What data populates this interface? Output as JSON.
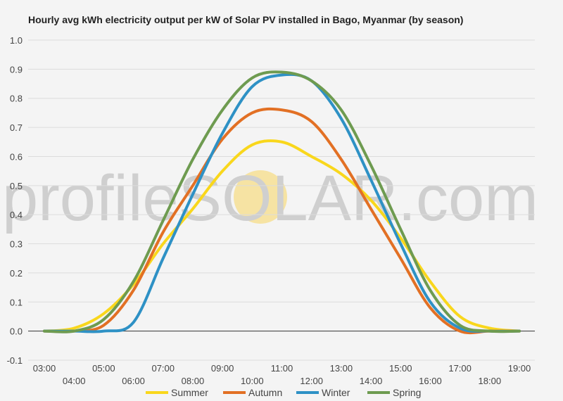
{
  "chart_data": {
    "type": "line",
    "title": "Hourly avg kWh electricity output per kW of Solar PV installed in Bago, Myanmar (by season)",
    "xlabel": "",
    "ylabel": "",
    "ylim": [
      -0.1,
      1.0
    ],
    "yticks": [
      "-0.1",
      "0.0",
      "0.1",
      "0.2",
      "0.3",
      "0.4",
      "0.5",
      "0.6",
      "0.7",
      "0.8",
      "0.9",
      "1.0"
    ],
    "x": [
      "03:00",
      "04:00",
      "05:00",
      "06:00",
      "07:00",
      "08:00",
      "09:00",
      "10:00",
      "11:00",
      "12:00",
      "13:00",
      "14:00",
      "15:00",
      "16:00",
      "17:00",
      "18:00",
      "19:00"
    ],
    "grid": true,
    "legend_position": "bottom",
    "series": [
      {
        "name": "Summer",
        "color": "#f9d71c",
        "values": [
          0.0,
          0.01,
          0.06,
          0.16,
          0.3,
          0.42,
          0.55,
          0.64,
          0.65,
          0.6,
          0.54,
          0.45,
          0.32,
          0.17,
          0.05,
          0.01,
          0.0
        ]
      },
      {
        "name": "Autumn",
        "color": "#e27024",
        "values": [
          0.0,
          0.0,
          0.02,
          0.14,
          0.34,
          0.5,
          0.66,
          0.75,
          0.76,
          0.72,
          0.59,
          0.42,
          0.25,
          0.08,
          0.0,
          0.0,
          0.0
        ]
      },
      {
        "name": "Winter",
        "color": "#2e91c5",
        "values": [
          0.0,
          0.0,
          0.0,
          0.03,
          0.25,
          0.47,
          0.68,
          0.84,
          0.88,
          0.86,
          0.73,
          0.52,
          0.3,
          0.1,
          0.01,
          0.0,
          0.0
        ]
      },
      {
        "name": "Spring",
        "color": "#6e9b50",
        "values": [
          0.0,
          0.0,
          0.04,
          0.17,
          0.38,
          0.59,
          0.76,
          0.87,
          0.89,
          0.86,
          0.76,
          0.57,
          0.35,
          0.14,
          0.02,
          0.0,
          0.0
        ]
      }
    ]
  },
  "watermark": {
    "prefix": "profile",
    "highlight": "SOLAR",
    "suffix": ".com",
    "sun_color": "#f6e3a3"
  }
}
